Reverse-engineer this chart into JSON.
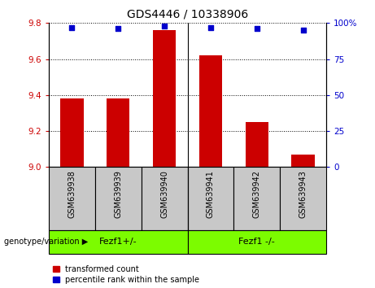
{
  "title": "GDS4446 / 10338906",
  "samples": [
    "GSM639938",
    "GSM639939",
    "GSM639940",
    "GSM639941",
    "GSM639942",
    "GSM639943"
  ],
  "bar_values": [
    9.38,
    9.38,
    9.76,
    9.62,
    9.25,
    9.07
  ],
  "percentile_values": [
    97,
    96,
    98,
    97,
    96,
    95
  ],
  "bar_bottom": 9.0,
  "ylim_left": [
    9.0,
    9.8
  ],
  "ylim_right": [
    0,
    100
  ],
  "yticks_left": [
    9.0,
    9.2,
    9.4,
    9.6,
    9.8
  ],
  "yticks_right": [
    0,
    25,
    50,
    75,
    100
  ],
  "bar_color": "#cc0000",
  "dot_color": "#0000cc",
  "groups": [
    {
      "label": "Fezf1+/-"
    },
    {
      "label": "Fezf1 -/-"
    }
  ],
  "group_bg_color": "#7CFC00",
  "sample_bg_color": "#c8c8c8",
  "legend_items": [
    {
      "color": "#cc0000",
      "label": "transformed count"
    },
    {
      "color": "#0000cc",
      "label": "percentile rank within the sample"
    }
  ],
  "group_row_label": "genotype/variation"
}
